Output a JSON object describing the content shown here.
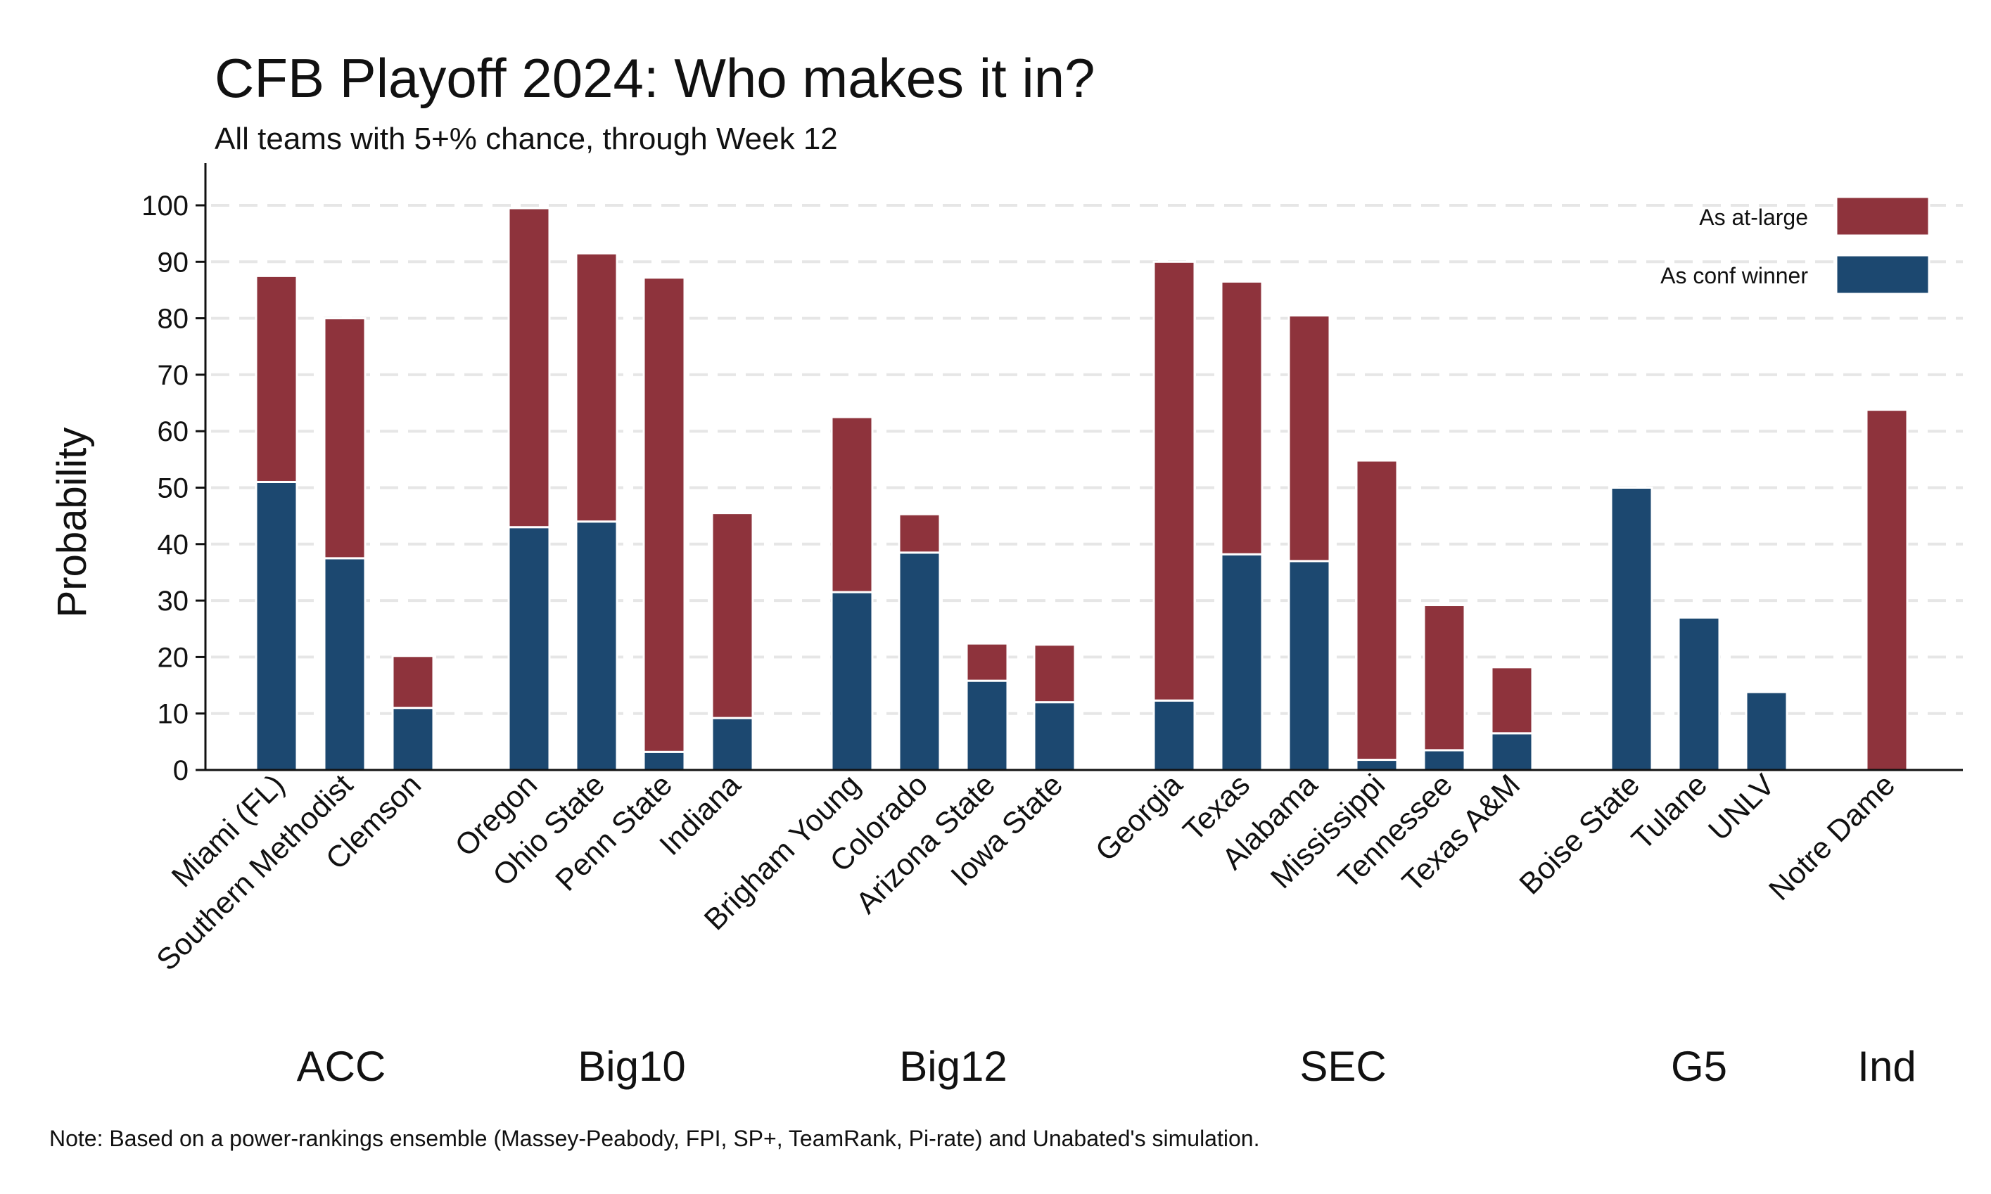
{
  "chart_data": {
    "type": "bar",
    "stacked": true,
    "title": "CFB Playoff 2024: Who makes it in?",
    "subtitle": "All teams with 5+% chance, through Week 12",
    "ylabel": "Probability",
    "xlabel": "",
    "ylim": [
      0,
      107
    ],
    "yticks": [
      0,
      10,
      20,
      30,
      40,
      50,
      60,
      70,
      80,
      90,
      100
    ],
    "grid": "horizontal dashed",
    "legend_position": "top-right",
    "note": "Note: Based on a power-rankings ensemble (Massey-Peabody, FPI, SP+, TeamRank, Pi-rate) and Unabated's simulation.",
    "colors": {
      "conf_winner": "#1c4870",
      "at_large": "#8e333c",
      "grid": "#e6e6e6"
    },
    "series": [
      {
        "name": "As conf winner",
        "key": "conf_winner"
      },
      {
        "name": "As at-large",
        "key": "at_large"
      }
    ],
    "legend_order": [
      "As at-large",
      "As conf winner"
    ],
    "groups": [
      {
        "name": "ACC",
        "teams": [
          {
            "team": "Miami (FL)",
            "conf_winner": 51,
            "at_large": 36.5
          },
          {
            "team": "Southern Methodist",
            "conf_winner": 37.5,
            "at_large": 42.5
          },
          {
            "team": "Clemson",
            "conf_winner": 11,
            "at_large": 9.2
          }
        ]
      },
      {
        "name": "Big10",
        "teams": [
          {
            "team": "Oregon",
            "conf_winner": 43,
            "at_large": 56.5
          },
          {
            "team": "Ohio State",
            "conf_winner": 44,
            "at_large": 47.5
          },
          {
            "team": "Penn State",
            "conf_winner": 3.2,
            "at_large": 84
          },
          {
            "team": "Indiana",
            "conf_winner": 9.2,
            "at_large": 36.3
          }
        ]
      },
      {
        "name": "Big12",
        "teams": [
          {
            "team": "Brigham Young",
            "conf_winner": 31.5,
            "at_large": 31
          },
          {
            "team": "Colorado",
            "conf_winner": 38.5,
            "at_large": 6.8
          },
          {
            "team": "Arizona State",
            "conf_winner": 15.8,
            "at_large": 6.6
          },
          {
            "team": "Iowa State",
            "conf_winner": 12,
            "at_large": 10.2
          }
        ]
      },
      {
        "name": "SEC",
        "teams": [
          {
            "team": "Georgia",
            "conf_winner": 12.3,
            "at_large": 77.7
          },
          {
            "team": "Texas",
            "conf_winner": 38.2,
            "at_large": 48.3
          },
          {
            "team": "Alabama",
            "conf_winner": 37,
            "at_large": 43.5
          },
          {
            "team": "Mississippi",
            "conf_winner": 1.8,
            "at_large": 53
          },
          {
            "team": "Tennessee",
            "conf_winner": 3.5,
            "at_large": 25.7
          },
          {
            "team": "Texas A&M",
            "conf_winner": 6.5,
            "at_large": 11.7
          }
        ]
      },
      {
        "name": "G5",
        "teams": [
          {
            "team": "Boise State",
            "conf_winner": 50,
            "at_large": 0
          },
          {
            "team": "Tulane",
            "conf_winner": 27,
            "at_large": 0
          },
          {
            "team": "UNLV",
            "conf_winner": 13.8,
            "at_large": 0
          }
        ]
      },
      {
        "name": "Ind",
        "teams": [
          {
            "team": "Notre Dame",
            "conf_winner": 0,
            "at_large": 63.8
          }
        ]
      }
    ]
  }
}
